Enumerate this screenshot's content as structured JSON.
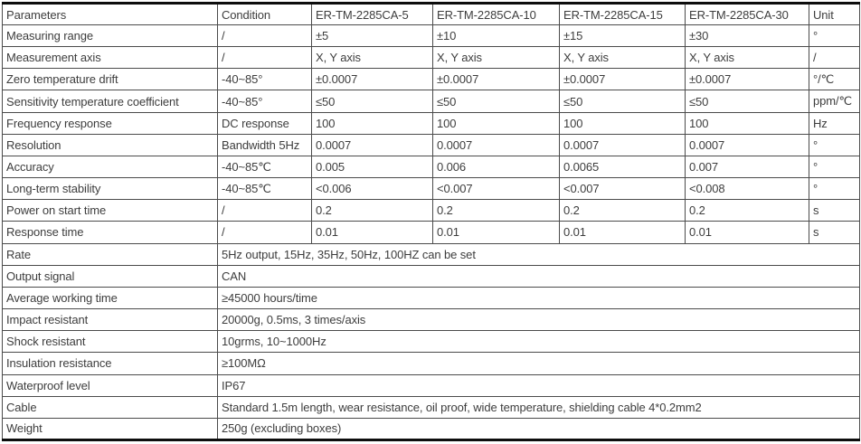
{
  "title": "ER-TM-2285CA series specification table",
  "colors": {
    "text": "#3d3d3d",
    "grid_line": "#4b4b4b",
    "outer_border": "#0d0d0d",
    "background": "#ffffff"
  },
  "table": {
    "columns": [
      "Parameters",
      "Condition",
      "ER-TM-2285CA-5",
      "ER-TM-2285CA-10",
      "ER-TM-2285CA-15",
      "ER-TM-2285CA-30",
      "Unit"
    ],
    "spec_rows": [
      {
        "parameter": "Measuring range",
        "condition": "/",
        "values": [
          "±5",
          "±10",
          "±15",
          "±30"
        ],
        "unit": "°"
      },
      {
        "parameter": "Measurement axis",
        "condition": "/",
        "values": [
          "X, Y axis",
          "X, Y axis",
          "X, Y axis",
          "X, Y axis"
        ],
        "unit": "/"
      },
      {
        "parameter": "Zero temperature drift",
        "condition": "-40~85°",
        "values": [
          "±0.0007",
          "±0.0007",
          "±0.0007",
          "±0.0007"
        ],
        "unit": "°/℃"
      },
      {
        "parameter": "Sensitivity temperature coefficient",
        "condition": "-40~85°",
        "values": [
          "≤50",
          "≤50",
          "≤50",
          "≤50"
        ],
        "unit": "ppm/℃"
      },
      {
        "parameter": "Frequency response",
        "condition": "DC response",
        "values": [
          "100",
          "100",
          "100",
          "100"
        ],
        "unit": "Hz"
      },
      {
        "parameter": "Resolution",
        "condition": "Bandwidth 5Hz",
        "values": [
          "0.0007",
          "0.0007",
          "0.0007",
          "0.0007"
        ],
        "unit": "°"
      },
      {
        "parameter": "Accuracy",
        "condition": "-40~85℃",
        "values": [
          "0.005",
          "0.006",
          "0.0065",
          "0.007"
        ],
        "unit": "°"
      },
      {
        "parameter": "Long-term stability",
        "condition": "-40~85℃",
        "values": [
          "<0.006",
          "<0.007",
          "<0.007",
          "<0.008"
        ],
        "unit": "°"
      },
      {
        "parameter": "Power on start time",
        "condition": "/",
        "values": [
          "0.2",
          "0.2",
          "0.2",
          "0.2"
        ],
        "unit": "s"
      },
      {
        "parameter": "Response time",
        "condition": "/",
        "values": [
          "0.01",
          "0.01",
          "0.01",
          "0.01"
        ],
        "unit": "s"
      }
    ],
    "span_rows": [
      {
        "parameter": "Rate",
        "value": "5Hz output, 15Hz, 35Hz, 50Hz, 100HZ can be set"
      },
      {
        "parameter": "Output signal",
        "value": "CAN"
      },
      {
        "parameter": "Average working time",
        "value": "≥45000 hours/time"
      },
      {
        "parameter": "Impact resistant",
        "value": "20000g, 0.5ms, 3 times/axis"
      },
      {
        "parameter": "Shock resistant",
        "value": "10grms, 10~1000Hz"
      },
      {
        "parameter": "Insulation resistance",
        "value": "≥100MΩ"
      },
      {
        "parameter": "Waterproof level",
        "value": "IP67"
      },
      {
        "parameter": "Cable",
        "value": "Standard 1.5m length, wear resistance, oil proof, wide temperature, shielding cable 4*0.2mm2"
      },
      {
        "parameter": "Weight",
        "value": "250g (excluding boxes)"
      }
    ]
  }
}
